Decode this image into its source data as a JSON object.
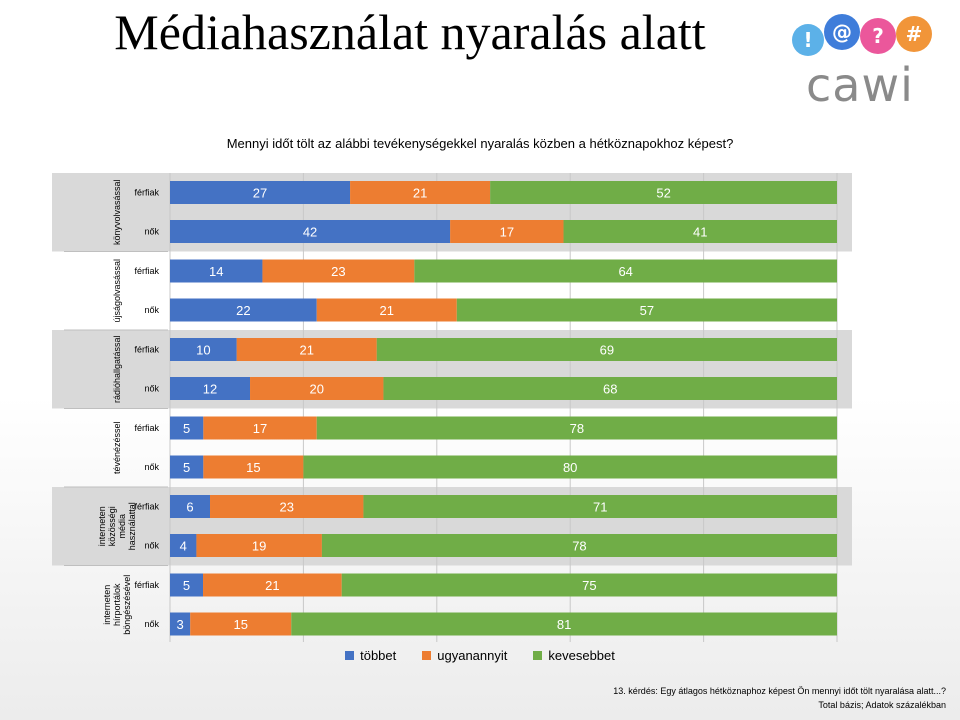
{
  "slide": {
    "title": "Médiahasználat nyaralás alatt",
    "logo_text": "cawi",
    "logo_glyphs": [
      "!",
      "@",
      "?",
      "#"
    ],
    "footnote_line1": "13. kérdés: Egy átlagos hétköznaphoz képest Ön mennyi időt tölt nyaralása alatt...?",
    "footnote_line2": "Total bázis; Adatok százalékban"
  },
  "colors": {
    "tobbet": "#4472C4",
    "ugyanannyit": "#ED7D31",
    "kevesebbet": "#70AD47",
    "band": "#d9d9d9",
    "logo": [
      "#4aa9e6",
      "#2a6fd6",
      "#e94590",
      "#f08a24"
    ]
  },
  "chart_data": {
    "type": "bar",
    "orientation": "horizontal",
    "stacked": true,
    "title": "Mennyi időt tölt az alábbi tevékenységekkel nyaralás közben a hétköznapokhoz képest?",
    "groups": [
      {
        "label": "könyvolvasással",
        "rows": [
          {
            "label": "férfiak",
            "values": [
              27,
              21,
              52
            ]
          },
          {
            "label": "nők",
            "values": [
              42,
              17,
              41
            ]
          }
        ]
      },
      {
        "label": "újságolvasással",
        "rows": [
          {
            "label": "férfiak",
            "values": [
              14,
              23,
              64
            ]
          },
          {
            "label": "nők",
            "values": [
              22,
              21,
              57
            ]
          }
        ]
      },
      {
        "label": "rádióhallgatással",
        "rows": [
          {
            "label": "férfiak",
            "values": [
              10,
              21,
              69
            ]
          },
          {
            "label": "nők",
            "values": [
              12,
              20,
              68
            ]
          }
        ]
      },
      {
        "label": "tévénézéssel",
        "rows": [
          {
            "label": "férfiak",
            "values": [
              5,
              17,
              78
            ]
          },
          {
            "label": "nők",
            "values": [
              5,
              15,
              80
            ]
          }
        ]
      },
      {
        "label": "interneten közösségi média használattal",
        "rows": [
          {
            "label": "férfiak",
            "values": [
              6,
              23,
              71
            ]
          },
          {
            "label": "nők",
            "values": [
              4,
              19,
              78
            ]
          }
        ]
      },
      {
        "label": "interneten hírportálok böngészésével",
        "rows": [
          {
            "label": "férfiak",
            "values": [
              5,
              21,
              75
            ]
          },
          {
            "label": "nők",
            "values": [
              3,
              15,
              81
            ]
          }
        ]
      }
    ],
    "series": [
      {
        "name": "többet"
      },
      {
        "name": "ugyanannyit"
      },
      {
        "name": "kevesebbet"
      }
    ],
    "xlim": [
      0,
      100
    ],
    "grid": true,
    "legend_position": "bottom"
  }
}
